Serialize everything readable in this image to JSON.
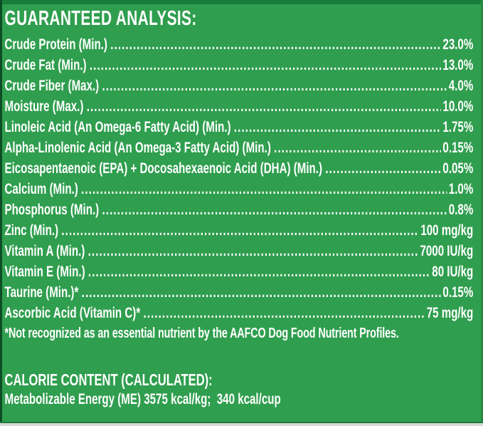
{
  "header": {
    "title": "GUARANTEED ANALYSIS:"
  },
  "analysis_rows": [
    {
      "label": "Crude Protein (Min.)",
      "value": "23.0%"
    },
    {
      "label": "Crude Fat (Min.)",
      "value": "13.0%"
    },
    {
      "label": "Crude Fiber (Max.)",
      "value": "4.0%"
    },
    {
      "label": "Moisture (Max.)",
      "value": "10.0%"
    },
    {
      "label": "Linoleic Acid (An Omega-6 Fatty Acid) (Min.)",
      "value": "1.75%"
    },
    {
      "label": "Alpha-Linolenic Acid (An Omega-3 Fatty Acid) (Min.)",
      "value": "0.15%"
    },
    {
      "label": "Eicosapentaenoic (EPA) + Docosahexaenoic Acid (DHA) (Min.)",
      "value": "0.05%"
    },
    {
      "label": "Calcium (Min.)",
      "value": "1.0%"
    },
    {
      "label": "Phosphorus (Min.)",
      "value": "0.8%"
    },
    {
      "label": "Zinc (Min.)",
      "value": "100 mg/kg"
    },
    {
      "label": "Vitamin A (Min.)",
      "value": "7000 IU/kg"
    },
    {
      "label": "Vitamin E (Min.)",
      "value": "80 IU/kg"
    },
    {
      "label": "Taurine (Min.)*",
      "value": "0.15%"
    },
    {
      "label": "Ascorbic Acid (Vitamin C)*",
      "value": "75 mg/kg"
    }
  ],
  "footnote": "*Not recognized as an essential nutrient by the AAFCO Dog Food Nutrient Profiles.",
  "calorie_section": {
    "title": "CALORIE CONTENT (CALCULATED):",
    "detail": "Metabolizable Energy (ME) 3575 kcal/kg;  340 kcal/cup"
  },
  "colors": {
    "background": "#2f9e4e",
    "top_bar": "#1a7c3b",
    "text": "#ffffff",
    "bottom_strip": "#d8d8d3"
  }
}
